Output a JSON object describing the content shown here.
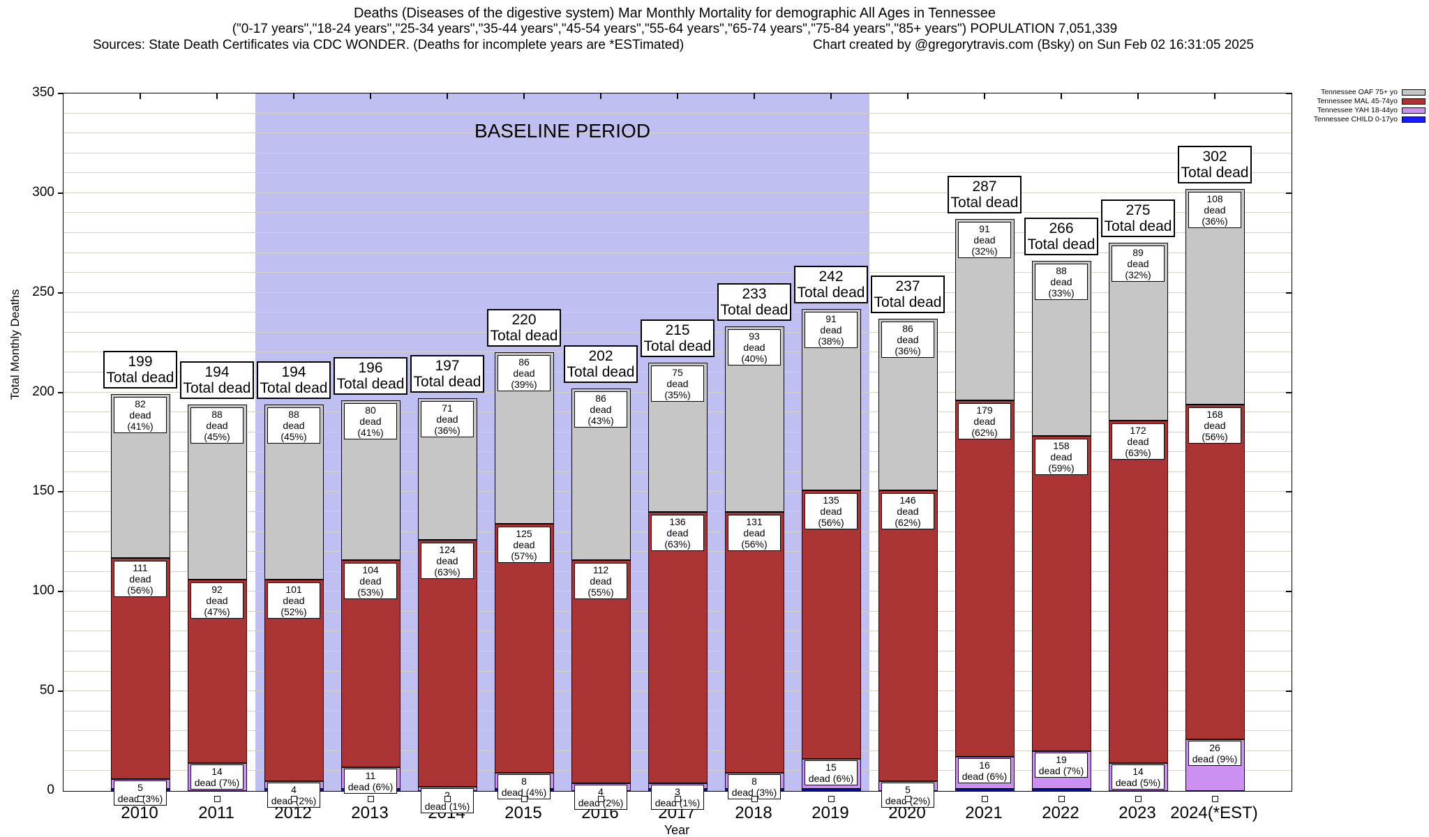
{
  "title": {
    "line1": "Deaths (Diseases of the digestive system) Mar Monthly Mortality for demographic All Ages in Tennessee",
    "line2": "(\"0-17 years\",\"18-24 years\",\"25-34 years\",\"35-44 years\",\"45-54 years\",\"55-64 years\",\"65-74 years\",\"75-84 years\",\"85+ years\") POPULATION 7,051,339",
    "line3_left": "Sources: State Death Certificates via CDC WONDER. (Deaths for incomplete years are *ESTimated)",
    "line3_right": "Chart created by @gregorytravis.com (Bsky) on Sun Feb 02 16:31:05 2025"
  },
  "axes": {
    "y_label": "Total Monthly Deaths",
    "x_label": "Year",
    "y_ticks": [
      0,
      50,
      100,
      150,
      200,
      250,
      300,
      350
    ]
  },
  "annotations": {
    "baseline_label": "BASELINE PERIOD",
    "total_label_text": "Total dead"
  },
  "legend": [
    {
      "label": "Tennessee OAF 75+ yo",
      "color": "#c6c6c6"
    },
    {
      "label": "Tennessee MAL 45-74yo",
      "color": "#aa3333"
    },
    {
      "label": "Tennessee YAH 18-44yo",
      "color": "#cc8ff2"
    },
    {
      "label": "Tennessee CHILD 0-17yo",
      "color": "#1a1aff"
    }
  ],
  "colors": {
    "oaf": "#c6c6c6",
    "mal": "#aa3333",
    "yah": "#cc8ff2",
    "child": "#1a1aff",
    "baseline_region": "#bfbff2",
    "gridline": "#d2d2c6"
  },
  "chart_data": {
    "type": "bar",
    "stacked": true,
    "title": "Deaths (Diseases of the digestive system) Mar Monthly Mortality for demographic All Ages in Tennessee",
    "xlabel": "Year",
    "ylabel": "Total Monthly Deaths",
    "ylim": [
      0,
      350
    ],
    "grid": true,
    "legend_position": "top-right-outside",
    "baseline_period": {
      "start_year": "2012",
      "end_year": "2019"
    },
    "categories": [
      "2010",
      "2011",
      "2012",
      "2013",
      "2014",
      "2015",
      "2016",
      "2017",
      "2018",
      "2019",
      "2020",
      "2021",
      "2022",
      "2023",
      "2024(*EST)"
    ],
    "series": [
      {
        "name": "Tennessee CHILD 0-17yo",
        "values": [
          1,
          0,
          1,
          1,
          0,
          1,
          0,
          1,
          1,
          1,
          0,
          1,
          1,
          0,
          0
        ]
      },
      {
        "name": "Tennessee YAH 18-44yo",
        "values": [
          5,
          14,
          4,
          11,
          2,
          8,
          4,
          3,
          8,
          15,
          5,
          16,
          19,
          14,
          26
        ]
      },
      {
        "name": "Tennessee MAL 45-74yo",
        "values": [
          111,
          92,
          101,
          104,
          124,
          125,
          112,
          136,
          131,
          135,
          146,
          179,
          158,
          172,
          168
        ]
      },
      {
        "name": "Tennessee OAF 75+ yo",
        "values": [
          82,
          88,
          88,
          80,
          71,
          86,
          86,
          75,
          93,
          91,
          86,
          91,
          88,
          89,
          108
        ]
      }
    ],
    "years": [
      {
        "year": "2010",
        "total": 199,
        "oaf": {
          "deaths": 82,
          "label": "dead (41%)"
        },
        "mal": {
          "deaths": 111,
          "label": "dead (56%)"
        },
        "yah": {
          "deaths": 5,
          "label": "dead (3%)"
        },
        "child": {
          "deaths": 1
        }
      },
      {
        "year": "2011",
        "total": 194,
        "oaf": {
          "deaths": 88,
          "label": "dead (45%)"
        },
        "mal": {
          "deaths": 92,
          "label": "dead (47%)"
        },
        "yah": {
          "deaths": 14,
          "label": "dead (7%)"
        },
        "child": {
          "deaths": 0
        }
      },
      {
        "year": "2012",
        "total": 194,
        "oaf": {
          "deaths": 88,
          "label": "dead (45%)"
        },
        "mal": {
          "deaths": 101,
          "label": "dead (52%)"
        },
        "yah": {
          "deaths": 4,
          "label": "dead (2%)"
        },
        "child": {
          "deaths": 1
        }
      },
      {
        "year": "2013",
        "total": 196,
        "oaf": {
          "deaths": 80,
          "label": "dead (41%)"
        },
        "mal": {
          "deaths": 104,
          "label": "dead (53%)"
        },
        "yah": {
          "deaths": 11,
          "label": "dead (6%)"
        },
        "child": {
          "deaths": 1
        }
      },
      {
        "year": "2014",
        "total": 197,
        "oaf": {
          "deaths": 71,
          "label": "dead (36%)"
        },
        "mal": {
          "deaths": 124,
          "label": "dead (63%)"
        },
        "yah": {
          "deaths": 2,
          "label": "dead (1%)"
        },
        "child": {
          "deaths": 0
        }
      },
      {
        "year": "2015",
        "total": 220,
        "oaf": {
          "deaths": 86,
          "label": "dead (39%)"
        },
        "mal": {
          "deaths": 125,
          "label": "dead (57%)"
        },
        "yah": {
          "deaths": 8,
          "label": "dead (4%)"
        },
        "child": {
          "deaths": 1
        }
      },
      {
        "year": "2016",
        "total": 202,
        "oaf": {
          "deaths": 86,
          "label": "dead (43%)"
        },
        "mal": {
          "deaths": 112,
          "label": "dead (55%)"
        },
        "yah": {
          "deaths": 4,
          "label": "dead (2%)"
        },
        "child": {
          "deaths": 0
        }
      },
      {
        "year": "2017",
        "total": 215,
        "oaf": {
          "deaths": 75,
          "label": "dead (35%)"
        },
        "mal": {
          "deaths": 136,
          "label": "dead (63%)"
        },
        "yah": {
          "deaths": 3,
          "label": "dead (1%)"
        },
        "child": {
          "deaths": 1
        }
      },
      {
        "year": "2018",
        "total": 233,
        "oaf": {
          "deaths": 93,
          "label": "dead (40%)"
        },
        "mal": {
          "deaths": 131,
          "label": "dead (56%)"
        },
        "yah": {
          "deaths": 8,
          "label": "dead (3%)"
        },
        "child": {
          "deaths": 1
        }
      },
      {
        "year": "2019",
        "total": 242,
        "oaf": {
          "deaths": 91,
          "label": "dead (38%)"
        },
        "mal": {
          "deaths": 135,
          "label": "dead (56%)"
        },
        "yah": {
          "deaths": 15,
          "label": "dead (6%)"
        },
        "child": {
          "deaths": 1
        }
      },
      {
        "year": "2020",
        "total": 237,
        "oaf": {
          "deaths": 86,
          "label": "dead (36%)"
        },
        "mal": {
          "deaths": 146,
          "label": "dead (62%)"
        },
        "yah": {
          "deaths": 5,
          "label": "dead (2%)"
        },
        "child": {
          "deaths": 0
        }
      },
      {
        "year": "2021",
        "total": 287,
        "oaf": {
          "deaths": 91,
          "label": "dead (32%)"
        },
        "mal": {
          "deaths": 179,
          "label": "dead (62%)"
        },
        "yah": {
          "deaths": 16,
          "label": "dead (6%)"
        },
        "child": {
          "deaths": 1
        }
      },
      {
        "year": "2022",
        "total": 266,
        "oaf": {
          "deaths": 88,
          "label": "dead (33%)"
        },
        "mal": {
          "deaths": 158,
          "label": "dead (59%)"
        },
        "yah": {
          "deaths": 19,
          "label": "dead (7%)"
        },
        "child": {
          "deaths": 1
        }
      },
      {
        "year": "2023",
        "total": 275,
        "oaf": {
          "deaths": 89,
          "label": "dead (32%)"
        },
        "mal": {
          "deaths": 172,
          "label": "dead (63%)"
        },
        "yah": {
          "deaths": 14,
          "label": "dead (5%)"
        },
        "child": {
          "deaths": 0
        }
      },
      {
        "year": "2024(*EST)",
        "total": 302,
        "oaf": {
          "deaths": 108,
          "label": "dead (36%)"
        },
        "mal": {
          "deaths": 168,
          "label": "dead (56%)"
        },
        "yah": {
          "deaths": 26,
          "label": "dead (9%)"
        },
        "child": {
          "deaths": 0
        }
      }
    ]
  }
}
